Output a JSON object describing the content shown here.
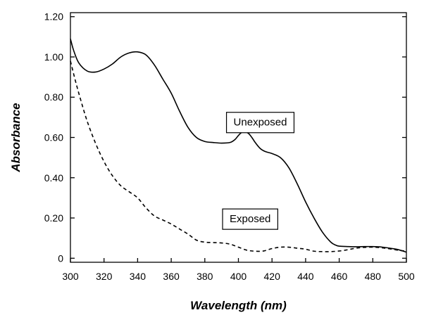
{
  "chart_data": {
    "type": "line",
    "title": "",
    "xlabel": "Wavelength (nm)",
    "ylabel": "Absorbance",
    "xlim": [
      300,
      500
    ],
    "ylim": [
      -0.02,
      1.22
    ],
    "grid": false,
    "x_ticks": [
      300,
      320,
      340,
      360,
      380,
      400,
      420,
      440,
      460,
      480,
      500
    ],
    "x_tick_labels": [
      "300",
      "320",
      "340",
      "360",
      "380",
      "400",
      "420",
      "440",
      "460",
      "480",
      "500"
    ],
    "y_ticks": [
      0,
      0.2,
      0.4,
      0.6,
      0.8,
      1.0,
      1.2
    ],
    "y_tick_labels": [
      "0",
      "0.20",
      "0.40",
      "0.60",
      "0.80",
      "1.00",
      "1.20"
    ],
    "series": [
      {
        "name": "Unexposed",
        "style": "solid",
        "color": "#000000",
        "x": [
          300,
          302,
          305,
          310,
          315,
          320,
          325,
          330,
          335,
          340,
          345,
          350,
          355,
          360,
          365,
          370,
          375,
          380,
          385,
          390,
          395,
          398,
          400,
          402,
          404,
          406,
          408,
          410,
          413,
          416,
          420,
          425,
          430,
          435,
          440,
          445,
          450,
          455,
          458,
          460,
          465,
          470,
          475,
          480,
          485,
          490,
          495,
          500
        ],
        "y": [
          1.09,
          1.03,
          0.97,
          0.93,
          0.925,
          0.94,
          0.965,
          1.0,
          1.02,
          1.025,
          1.01,
          0.96,
          0.89,
          0.82,
          0.73,
          0.65,
          0.6,
          0.58,
          0.575,
          0.572,
          0.575,
          0.59,
          0.61,
          0.625,
          0.628,
          0.62,
          0.6,
          0.575,
          0.545,
          0.53,
          0.52,
          0.5,
          0.45,
          0.37,
          0.28,
          0.2,
          0.13,
          0.08,
          0.065,
          0.06,
          0.058,
          0.057,
          0.058,
          0.058,
          0.056,
          0.05,
          0.043,
          0.03
        ]
      },
      {
        "name": "Exposed",
        "style": "dashed",
        "color": "#000000",
        "x": [
          300,
          303,
          306,
          310,
          315,
          320,
          325,
          330,
          335,
          340,
          345,
          350,
          355,
          360,
          365,
          370,
          375,
          380,
          385,
          390,
          395,
          400,
          405,
          410,
          415,
          420,
          425,
          430,
          435,
          440,
          445,
          450,
          455,
          460,
          465,
          470,
          475,
          480,
          485,
          490,
          495,
          500
        ],
        "y": [
          0.98,
          0.88,
          0.79,
          0.68,
          0.57,
          0.48,
          0.41,
          0.36,
          0.33,
          0.3,
          0.25,
          0.21,
          0.19,
          0.17,
          0.145,
          0.12,
          0.09,
          0.08,
          0.078,
          0.076,
          0.07,
          0.055,
          0.04,
          0.035,
          0.036,
          0.048,
          0.055,
          0.055,
          0.05,
          0.045,
          0.035,
          0.033,
          0.033,
          0.036,
          0.042,
          0.05,
          0.054,
          0.055,
          0.052,
          0.047,
          0.04,
          0.035
        ]
      }
    ],
    "annotations": [
      {
        "text": "Unexposed",
        "x": 413,
        "y": 0.676
      },
      {
        "text": "Exposed",
        "x": 407,
        "y": 0.196
      }
    ]
  }
}
